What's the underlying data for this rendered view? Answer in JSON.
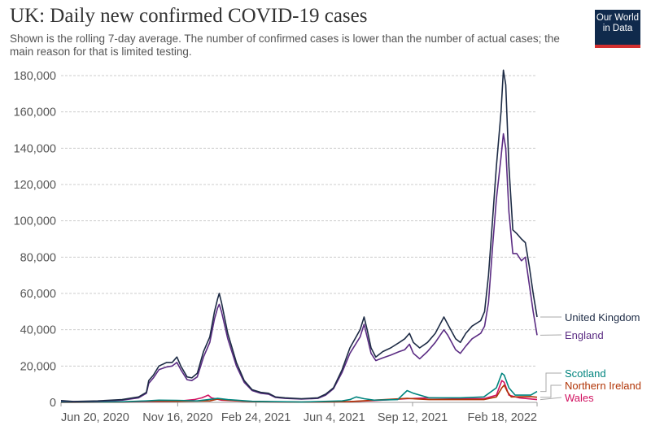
{
  "header": {
    "title": "UK: Daily new confirmed COVID-19 cases",
    "subtitle": "Shown is the rolling 7-day average. The number of confirmed cases is lower than the number of actual cases; the main reason for that is limited testing.",
    "logo": "Our World in Data"
  },
  "chart_data": {
    "type": "line",
    "title": "UK: Daily new confirmed COVID-19 cases",
    "xlabel": "",
    "ylabel": "",
    "x_unit": "days since Jun 20, 2020",
    "xlim": [
      0,
      608
    ],
    "ylim": [
      0,
      180000
    ],
    "yticks": [
      0,
      20000,
      40000,
      60000,
      80000,
      100000,
      120000,
      140000,
      160000,
      180000
    ],
    "ytick_labels": [
      "0",
      "20,000",
      "40,000",
      "60,000",
      "80,000",
      "100,000",
      "120,000",
      "140,000",
      "160,000",
      "180,000"
    ],
    "xticks": [
      0,
      149,
      249,
      349,
      449,
      608
    ],
    "xtick_labels": [
      "Jun 20, 2020",
      "Nov 16, 2020",
      "Feb 24, 2021",
      "Jun 4, 2021",
      "Sep 12, 2021",
      "Feb 18, 2022"
    ],
    "grid": "horizontal-dashed",
    "legend": "right-end-labels",
    "series": [
      {
        "name": "United Kingdom",
        "color": "#1d2b45",
        "points": [
          [
            0,
            1000
          ],
          [
            16,
            500
          ],
          [
            47,
            800
          ],
          [
            78,
            1500
          ],
          [
            99,
            3000
          ],
          [
            109,
            5500
          ],
          [
            112,
            12000
          ],
          [
            118,
            15000
          ],
          [
            125,
            20000
          ],
          [
            135,
            22000
          ],
          [
            142,
            22000
          ],
          [
            148,
            25000
          ],
          [
            153,
            20000
          ],
          [
            161,
            14000
          ],
          [
            167,
            13500
          ],
          [
            174,
            16000
          ],
          [
            182,
            28000
          ],
          [
            187,
            33000
          ],
          [
            190,
            36000
          ],
          [
            196,
            50000
          ],
          [
            200,
            57000
          ],
          [
            202,
            60000
          ],
          [
            205,
            55000
          ],
          [
            213,
            38000
          ],
          [
            224,
            22000
          ],
          [
            234,
            12000
          ],
          [
            244,
            7000
          ],
          [
            255,
            5500
          ],
          [
            265,
            5000
          ],
          [
            274,
            3000
          ],
          [
            286,
            2500
          ],
          [
            307,
            2000
          ],
          [
            328,
            2500
          ],
          [
            338,
            4500
          ],
          [
            348,
            8000
          ],
          [
            359,
            18000
          ],
          [
            369,
            30000
          ],
          [
            382,
            40000
          ],
          [
            387,
            47000
          ],
          [
            391,
            40000
          ],
          [
            396,
            30000
          ],
          [
            402,
            25000
          ],
          [
            411,
            28000
          ],
          [
            421,
            30000
          ],
          [
            432,
            33000
          ],
          [
            439,
            35000
          ],
          [
            445,
            38000
          ],
          [
            450,
            33000
          ],
          [
            458,
            30000
          ],
          [
            468,
            33000
          ],
          [
            478,
            38000
          ],
          [
            489,
            47000
          ],
          [
            494,
            43000
          ],
          [
            504,
            35000
          ],
          [
            510,
            33000
          ],
          [
            517,
            38000
          ],
          [
            525,
            42000
          ],
          [
            536,
            45000
          ],
          [
            541,
            50000
          ],
          [
            546,
            70000
          ],
          [
            551,
            100000
          ],
          [
            556,
            130000
          ],
          [
            562,
            160000
          ],
          [
            565,
            183000
          ],
          [
            568,
            175000
          ],
          [
            572,
            130000
          ],
          [
            577,
            95000
          ],
          [
            582,
            93000
          ],
          [
            588,
            90000
          ],
          [
            593,
            88000
          ],
          [
            598,
            75000
          ],
          [
            603,
            60000
          ],
          [
            608,
            47000
          ]
        ]
      },
      {
        "name": "England",
        "color": "#5b2c83",
        "points": [
          [
            0,
            700
          ],
          [
            16,
            400
          ],
          [
            47,
            600
          ],
          [
            78,
            1200
          ],
          [
            99,
            2500
          ],
          [
            109,
            5000
          ],
          [
            112,
            10500
          ],
          [
            118,
            13500
          ],
          [
            125,
            18000
          ],
          [
            135,
            19500
          ],
          [
            142,
            20000
          ],
          [
            148,
            22000
          ],
          [
            153,
            18000
          ],
          [
            161,
            12500
          ],
          [
            167,
            12000
          ],
          [
            174,
            14000
          ],
          [
            182,
            25000
          ],
          [
            187,
            30000
          ],
          [
            190,
            33000
          ],
          [
            196,
            46000
          ],
          [
            200,
            52000
          ],
          [
            202,
            54000
          ],
          [
            205,
            50000
          ],
          [
            213,
            35000
          ],
          [
            224,
            20000
          ],
          [
            234,
            11000
          ],
          [
            244,
            6500
          ],
          [
            255,
            5000
          ],
          [
            265,
            4500
          ],
          [
            274,
            2700
          ],
          [
            286,
            2200
          ],
          [
            307,
            1800
          ],
          [
            328,
            2200
          ],
          [
            338,
            4000
          ],
          [
            348,
            7500
          ],
          [
            359,
            16500
          ],
          [
            369,
            27000
          ],
          [
            382,
            36000
          ],
          [
            387,
            43000
          ],
          [
            391,
            36000
          ],
          [
            396,
            27000
          ],
          [
            402,
            23000
          ],
          [
            411,
            24500
          ],
          [
            421,
            26000
          ],
          [
            432,
            28000
          ],
          [
            439,
            29000
          ],
          [
            445,
            32000
          ],
          [
            450,
            27000
          ],
          [
            458,
            24000
          ],
          [
            468,
            28000
          ],
          [
            478,
            33000
          ],
          [
            489,
            40000
          ],
          [
            494,
            37000
          ],
          [
            504,
            29000
          ],
          [
            510,
            27000
          ],
          [
            517,
            31000
          ],
          [
            525,
            35000
          ],
          [
            536,
            38000
          ],
          [
            541,
            42000
          ],
          [
            546,
            55000
          ],
          [
            551,
            85000
          ],
          [
            556,
            112000
          ],
          [
            562,
            135000
          ],
          [
            565,
            148000
          ],
          [
            568,
            140000
          ],
          [
            572,
            105000
          ],
          [
            577,
            82000
          ],
          [
            582,
            82000
          ],
          [
            588,
            78000
          ],
          [
            593,
            80000
          ],
          [
            598,
            65000
          ],
          [
            603,
            50000
          ],
          [
            608,
            37000
          ]
        ]
      },
      {
        "name": "Scotland",
        "color": "#00847e",
        "points": [
          [
            0,
            200
          ],
          [
            78,
            300
          ],
          [
            109,
            800
          ],
          [
            125,
            1200
          ],
          [
            148,
            1100
          ],
          [
            174,
            800
          ],
          [
            200,
            2200
          ],
          [
            213,
            1500
          ],
          [
            244,
            600
          ],
          [
            307,
            200
          ],
          [
            359,
            800
          ],
          [
            369,
            1500
          ],
          [
            377,
            3000
          ],
          [
            387,
            2000
          ],
          [
            400,
            1200
          ],
          [
            430,
            1500
          ],
          [
            442,
            6500
          ],
          [
            450,
            5000
          ],
          [
            470,
            2500
          ],
          [
            510,
            2500
          ],
          [
            540,
            3000
          ],
          [
            556,
            8000
          ],
          [
            563,
            16000
          ],
          [
            566,
            15000
          ],
          [
            572,
            8000
          ],
          [
            580,
            4000
          ],
          [
            600,
            4000
          ],
          [
            608,
            6000
          ]
        ]
      },
      {
        "name": "Northern Ireland",
        "color": "#b13507",
        "points": [
          [
            0,
            50
          ],
          [
            78,
            200
          ],
          [
            109,
            700
          ],
          [
            148,
            600
          ],
          [
            190,
            800
          ],
          [
            200,
            1800
          ],
          [
            213,
            1200
          ],
          [
            244,
            400
          ],
          [
            307,
            150
          ],
          [
            369,
            400
          ],
          [
            400,
            1200
          ],
          [
            442,
            2200
          ],
          [
            470,
            1500
          ],
          [
            510,
            1500
          ],
          [
            540,
            1500
          ],
          [
            556,
            3000
          ],
          [
            563,
            8000
          ],
          [
            566,
            9500
          ],
          [
            570,
            6000
          ],
          [
            575,
            3000
          ],
          [
            600,
            3200
          ],
          [
            608,
            2800
          ]
        ]
      },
      {
        "name": "Wales",
        "color": "#d11160",
        "points": [
          [
            0,
            100
          ],
          [
            78,
            200
          ],
          [
            109,
            500
          ],
          [
            148,
            600
          ],
          [
            170,
            1500
          ],
          [
            180,
            2500
          ],
          [
            188,
            4000
          ],
          [
            192,
            2500
          ],
          [
            205,
            1200
          ],
          [
            244,
            400
          ],
          [
            307,
            150
          ],
          [
            369,
            400
          ],
          [
            400,
            1000
          ],
          [
            442,
            2000
          ],
          [
            470,
            2500
          ],
          [
            510,
            2000
          ],
          [
            540,
            2000
          ],
          [
            556,
            4000
          ],
          [
            563,
            12000
          ],
          [
            566,
            11000
          ],
          [
            572,
            4000
          ],
          [
            585,
            2500
          ],
          [
            608,
            1500
          ]
        ]
      }
    ]
  }
}
